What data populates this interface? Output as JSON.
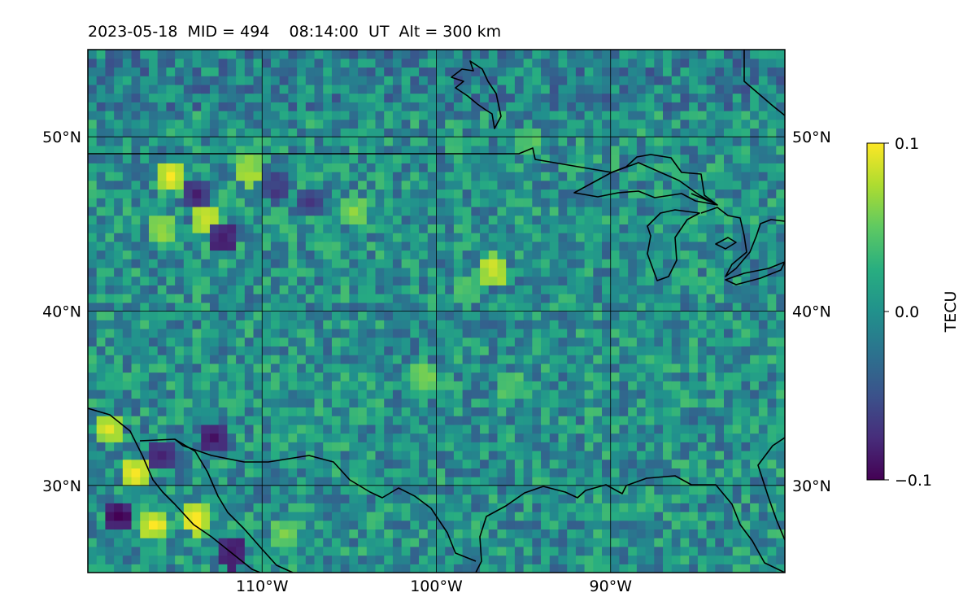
{
  "title": "2023-05-18  MID = 494    08:14:00  UT  Alt = 300 km",
  "colors": {
    "coastline": "#000000",
    "gridline": "#000000",
    "colormap": "viridis"
  },
  "chart_data": {
    "type": "heatmap",
    "title": "2023-05-18  MID = 494    08:14:00  UT  Alt = 300 km",
    "map": {
      "lon_range": [
        -120,
        -80
      ],
      "lat_range": [
        25,
        55
      ]
    },
    "x_ticks": [
      {
        "value": -110,
        "label": "110°W"
      },
      {
        "value": -100,
        "label": "100°W"
      },
      {
        "value": -90,
        "label": "90°W"
      }
    ],
    "y_ticks": [
      {
        "value": 30,
        "label": "30°N"
      },
      {
        "value": 40,
        "label": "40°N"
      },
      {
        "value": 50,
        "label": "50°N"
      }
    ],
    "grid": true,
    "colorbar": {
      "label": "TECU",
      "range": [
        -0.1,
        0.1
      ],
      "ticks": [
        {
          "value": 0.1,
          "label": "0.1"
        },
        {
          "value": 0.0,
          "label": "0.0"
        },
        {
          "value": -0.1,
          "label": "−0.1"
        }
      ],
      "colormap": "viridis"
    },
    "field_description_values": {
      "background_level": 0.0,
      "strong_positive_patches": 0.1,
      "strong_negative_patches": -0.1
    },
    "hotspots": [
      {
        "lon": -115.5,
        "lat": 47.5,
        "value": 0.1
      },
      {
        "lon": -114.0,
        "lat": 46.5,
        "value": -0.08
      },
      {
        "lon": -113.5,
        "lat": 45.0,
        "value": 0.09
      },
      {
        "lon": -112.5,
        "lat": 44.0,
        "value": -0.09
      },
      {
        "lon": -116.0,
        "lat": 44.5,
        "value": 0.07
      },
      {
        "lon": -111.0,
        "lat": 47.8,
        "value": 0.08
      },
      {
        "lon": -109.5,
        "lat": 46.8,
        "value": -0.07
      },
      {
        "lon": -107.5,
        "lat": 46.0,
        "value": -0.06
      },
      {
        "lon": -105.0,
        "lat": 45.5,
        "value": 0.06
      },
      {
        "lon": -97.0,
        "lat": 42.2,
        "value": 0.09
      },
      {
        "lon": -95.0,
        "lat": 49.5,
        "value": 0.05
      },
      {
        "lon": -119.0,
        "lat": 33.0,
        "value": 0.09
      },
      {
        "lon": -117.5,
        "lat": 30.5,
        "value": 0.1
      },
      {
        "lon": -118.5,
        "lat": 28.0,
        "value": -0.1
      },
      {
        "lon": -116.5,
        "lat": 27.5,
        "value": 0.1
      },
      {
        "lon": -114.0,
        "lat": 27.8,
        "value": 0.1
      },
      {
        "lon": -116.0,
        "lat": 31.5,
        "value": -0.08
      },
      {
        "lon": -113.0,
        "lat": 32.5,
        "value": -0.09
      },
      {
        "lon": -112.0,
        "lat": 25.8,
        "value": -0.1
      },
      {
        "lon": -109.0,
        "lat": 27.0,
        "value": 0.06
      },
      {
        "lon": -101.0,
        "lat": 36.0,
        "value": 0.06
      },
      {
        "lon": -98.5,
        "lat": 40.8,
        "value": 0.05
      },
      {
        "lon": -96.0,
        "lat": 35.5,
        "value": 0.05
      }
    ]
  }
}
